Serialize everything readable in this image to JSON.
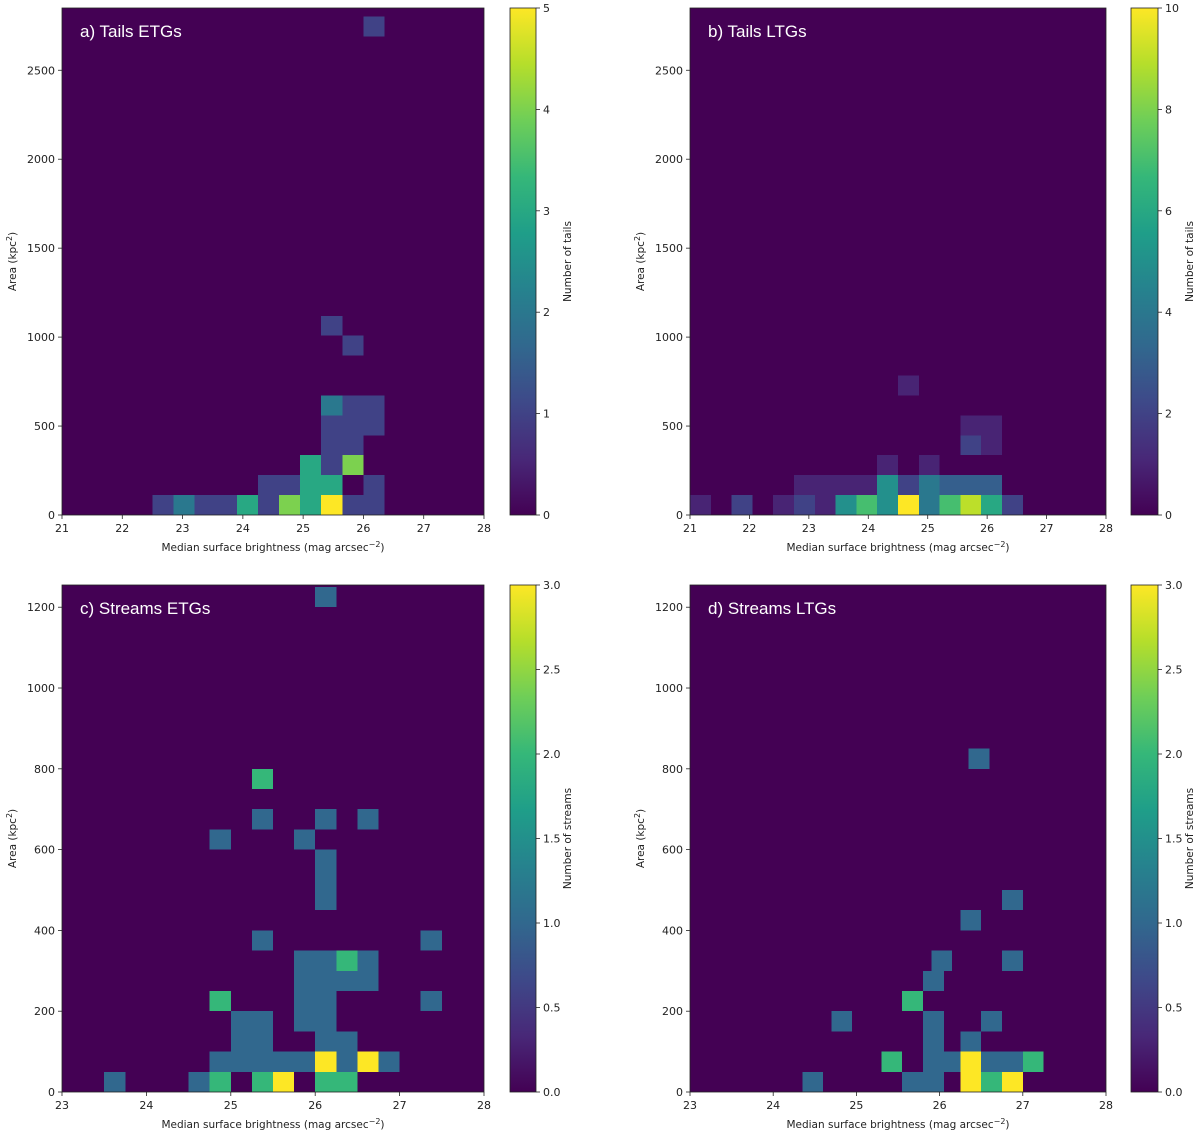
{
  "colors": {
    "background": "#ffffff",
    "axis": "#222222",
    "colormap_viridis": [
      "#440154",
      "#482878",
      "#3e4989",
      "#31688e",
      "#26828e",
      "#1f9e89",
      "#35b779",
      "#6ece58",
      "#b5de2b",
      "#fde725"
    ]
  },
  "chart_data": [
    {
      "id": "a",
      "type": "heatmap",
      "title": "a) Tails ETGs",
      "xlabel": "Median surface brightness (mag arcsec$^{-2}$)",
      "xlabel_text": "Median surface brightness (mag arcsec",
      "xlabel_sup": "−2",
      "xlabel_close": ")",
      "ylabel_text": "Area (kpc",
      "ylabel_sup": "2",
      "ylabel_close": ")",
      "xlim": [
        21,
        28
      ],
      "ylim": [
        0,
        2850
      ],
      "xticks": [
        21,
        22,
        23,
        24,
        25,
        26,
        27,
        28
      ],
      "yticks": [
        0,
        500,
        1000,
        1500,
        2000,
        2500
      ],
      "bin_width": 0.35,
      "bin_height": 112,
      "cells": [
        {
          "x": 22.5,
          "y": 0,
          "v": 1
        },
        {
          "x": 22.85,
          "y": 0,
          "v": 2
        },
        {
          "x": 23.2,
          "y": 0,
          "v": 1
        },
        {
          "x": 23.55,
          "y": 0,
          "v": 1
        },
        {
          "x": 23.9,
          "y": 0,
          "v": 3
        },
        {
          "x": 24.25,
          "y": 0,
          "v": 1
        },
        {
          "x": 24.6,
          "y": 0,
          "v": 4
        },
        {
          "x": 24.95,
          "y": 0,
          "v": 3
        },
        {
          "x": 25.3,
          "y": 0,
          "v": 5
        },
        {
          "x": 25.65,
          "y": 0,
          "v": 1
        },
        {
          "x": 26.0,
          "y": 0,
          "v": 1
        },
        {
          "x": 24.25,
          "y": 112,
          "v": 1
        },
        {
          "x": 24.6,
          "y": 112,
          "v": 1
        },
        {
          "x": 24.95,
          "y": 112,
          "v": 3
        },
        {
          "x": 25.3,
          "y": 112,
          "v": 3
        },
        {
          "x": 26.0,
          "y": 112,
          "v": 1
        },
        {
          "x": 24.95,
          "y": 224,
          "v": 3
        },
        {
          "x": 25.3,
          "y": 224,
          "v": 1
        },
        {
          "x": 25.65,
          "y": 224,
          "v": 4
        },
        {
          "x": 25.3,
          "y": 336,
          "v": 1
        },
        {
          "x": 25.65,
          "y": 336,
          "v": 1
        },
        {
          "x": 25.3,
          "y": 448,
          "v": 1
        },
        {
          "x": 25.65,
          "y": 448,
          "v": 1
        },
        {
          "x": 26.0,
          "y": 448,
          "v": 1
        },
        {
          "x": 25.3,
          "y": 560,
          "v": 2
        },
        {
          "x": 25.65,
          "y": 560,
          "v": 1
        },
        {
          "x": 26.0,
          "y": 560,
          "v": 1
        },
        {
          "x": 25.65,
          "y": 896,
          "v": 1
        },
        {
          "x": 25.3,
          "y": 1008,
          "v": 1
        },
        {
          "x": 26.0,
          "y": 2690,
          "v": 1
        }
      ],
      "colorbar": {
        "label": "Number of tails",
        "range": [
          0,
          5
        ],
        "ticks": [
          "0",
          "1",
          "2",
          "3",
          "4",
          "5"
        ]
      }
    },
    {
      "id": "b",
      "type": "heatmap",
      "title": "b) Tails LTGs",
      "xlabel": "Median surface brightness (mag arcsec$^{-2}$)",
      "xlabel_text": "Median surface brightness (mag arcsec",
      "xlabel_sup": "−2",
      "xlabel_close": ")",
      "ylabel_text": "Area (kpc",
      "ylabel_sup": "2",
      "ylabel_close": ")",
      "xlim": [
        21,
        28
      ],
      "ylim": [
        0,
        2850
      ],
      "xticks": [
        21,
        22,
        23,
        24,
        25,
        26,
        27,
        28
      ],
      "yticks": [
        0,
        500,
        1000,
        1500,
        2000,
        2500
      ],
      "bin_width": 0.35,
      "bin_height": 112,
      "cells": [
        {
          "x": 21.0,
          "y": 0,
          "v": 1
        },
        {
          "x": 21.7,
          "y": 0,
          "v": 2
        },
        {
          "x": 22.4,
          "y": 0,
          "v": 1
        },
        {
          "x": 22.75,
          "y": 0,
          "v": 2
        },
        {
          "x": 23.1,
          "y": 0,
          "v": 1
        },
        {
          "x": 23.45,
          "y": 0,
          "v": 5
        },
        {
          "x": 23.8,
          "y": 0,
          "v": 7
        },
        {
          "x": 24.15,
          "y": 0,
          "v": 5
        },
        {
          "x": 24.5,
          "y": 0,
          "v": 10
        },
        {
          "x": 24.85,
          "y": 0,
          "v": 4
        },
        {
          "x": 25.2,
          "y": 0,
          "v": 7
        },
        {
          "x": 25.55,
          "y": 0,
          "v": 9
        },
        {
          "x": 25.9,
          "y": 0,
          "v": 6
        },
        {
          "x": 26.25,
          "y": 0,
          "v": 2
        },
        {
          "x": 22.75,
          "y": 112,
          "v": 1
        },
        {
          "x": 23.1,
          "y": 112,
          "v": 1
        },
        {
          "x": 23.45,
          "y": 112,
          "v": 1
        },
        {
          "x": 23.8,
          "y": 112,
          "v": 1
        },
        {
          "x": 24.15,
          "y": 112,
          "v": 5
        },
        {
          "x": 24.5,
          "y": 112,
          "v": 2
        },
        {
          "x": 24.85,
          "y": 112,
          "v": 4
        },
        {
          "x": 25.2,
          "y": 112,
          "v": 3
        },
        {
          "x": 25.55,
          "y": 112,
          "v": 3
        },
        {
          "x": 25.9,
          "y": 112,
          "v": 3
        },
        {
          "x": 24.15,
          "y": 224,
          "v": 1
        },
        {
          "x": 24.85,
          "y": 224,
          "v": 1
        },
        {
          "x": 25.55,
          "y": 336,
          "v": 2
        },
        {
          "x": 25.9,
          "y": 336,
          "v": 1
        },
        {
          "x": 25.55,
          "y": 448,
          "v": 1
        },
        {
          "x": 25.9,
          "y": 448,
          "v": 1
        },
        {
          "x": 24.5,
          "y": 672,
          "v": 1
        }
      ],
      "colorbar": {
        "label": "Number of tails",
        "range": [
          0,
          10
        ],
        "ticks": [
          "0",
          "2",
          "4",
          "6",
          "8",
          "10"
        ]
      }
    },
    {
      "id": "c",
      "type": "heatmap",
      "title": "c) Streams ETGs",
      "xlabel": "Median surface brightness (mag arcsec$^{-2}$)",
      "xlabel_text": "Median surface brightness (mag arcsec",
      "xlabel_sup": "−2",
      "xlabel_close": ")",
      "ylabel_text": "Area (kpc",
      "ylabel_sup": "2",
      "ylabel_close": ")",
      "xlim": [
        23,
        28
      ],
      "ylim": [
        0,
        1255
      ],
      "xticks": [
        23,
        24,
        25,
        26,
        27,
        28
      ],
      "yticks": [
        0,
        200,
        400,
        600,
        800,
        1000,
        1200
      ],
      "bin_width": 0.25,
      "bin_height": 50,
      "cells": [
        {
          "x": 23.5,
          "y": 0,
          "v": 1
        },
        {
          "x": 24.5,
          "y": 0,
          "v": 1
        },
        {
          "x": 24.75,
          "y": 0,
          "v": 2
        },
        {
          "x": 25.25,
          "y": 0,
          "v": 2
        },
        {
          "x": 25.5,
          "y": 0,
          "v": 3
        },
        {
          "x": 26.0,
          "y": 0,
          "v": 2
        },
        {
          "x": 26.25,
          "y": 0,
          "v": 2
        },
        {
          "x": 24.75,
          "y": 50,
          "v": 1
        },
        {
          "x": 25.0,
          "y": 50,
          "v": 1
        },
        {
          "x": 25.25,
          "y": 50,
          "v": 1
        },
        {
          "x": 25.5,
          "y": 50,
          "v": 1
        },
        {
          "x": 25.75,
          "y": 50,
          "v": 1
        },
        {
          "x": 26.0,
          "y": 50,
          "v": 3
        },
        {
          "x": 26.25,
          "y": 50,
          "v": 1
        },
        {
          "x": 26.5,
          "y": 50,
          "v": 3
        },
        {
          "x": 26.75,
          "y": 50,
          "v": 1
        },
        {
          "x": 25.0,
          "y": 100,
          "v": 1
        },
        {
          "x": 25.25,
          "y": 100,
          "v": 1
        },
        {
          "x": 26.0,
          "y": 100,
          "v": 1
        },
        {
          "x": 26.25,
          "y": 100,
          "v": 1
        },
        {
          "x": 25.0,
          "y": 150,
          "v": 1
        },
        {
          "x": 25.25,
          "y": 150,
          "v": 1
        },
        {
          "x": 25.75,
          "y": 150,
          "v": 1
        },
        {
          "x": 26.0,
          "y": 150,
          "v": 1
        },
        {
          "x": 24.75,
          "y": 200,
          "v": 2
        },
        {
          "x": 25.75,
          "y": 200,
          "v": 1
        },
        {
          "x": 26.0,
          "y": 200,
          "v": 1
        },
        {
          "x": 27.25,
          "y": 200,
          "v": 1
        },
        {
          "x": 25.75,
          "y": 250,
          "v": 1
        },
        {
          "x": 26.0,
          "y": 250,
          "v": 1
        },
        {
          "x": 26.25,
          "y": 250,
          "v": 1
        },
        {
          "x": 26.5,
          "y": 250,
          "v": 1
        },
        {
          "x": 25.75,
          "y": 300,
          "v": 1
        },
        {
          "x": 26.0,
          "y": 300,
          "v": 1
        },
        {
          "x": 26.25,
          "y": 300,
          "v": 2
        },
        {
          "x": 26.5,
          "y": 300,
          "v": 1
        },
        {
          "x": 25.25,
          "y": 350,
          "v": 1
        },
        {
          "x": 27.25,
          "y": 350,
          "v": 1
        },
        {
          "x": 26.0,
          "y": 450,
          "v": 1
        },
        {
          "x": 26.0,
          "y": 500,
          "v": 1
        },
        {
          "x": 26.0,
          "y": 550,
          "v": 1
        },
        {
          "x": 24.75,
          "y": 600,
          "v": 1
        },
        {
          "x": 25.75,
          "y": 600,
          "v": 1
        },
        {
          "x": 25.25,
          "y": 650,
          "v": 1
        },
        {
          "x": 26.0,
          "y": 650,
          "v": 1
        },
        {
          "x": 26.5,
          "y": 650,
          "v": 1
        },
        {
          "x": 25.25,
          "y": 750,
          "v": 2
        },
        {
          "x": 26.0,
          "y": 1200,
          "v": 1
        }
      ],
      "colorbar": {
        "label": "Number of streams",
        "range": [
          0,
          3.0
        ],
        "ticks": [
          "0.0",
          "0.5",
          "1.0",
          "1.5",
          "2.0",
          "2.5",
          "3.0"
        ]
      }
    },
    {
      "id": "d",
      "type": "heatmap",
      "title": "d) Streams LTGs",
      "xlabel": "Median surface brightness (mag arcsec$^{-2}$)",
      "xlabel_text": "Median surface brightness (mag arcsec",
      "xlabel_sup": "−2",
      "xlabel_close": ")",
      "ylabel_text": "Area (kpc",
      "ylabel_sup": "2",
      "ylabel_close": ")",
      "xlim": [
        23,
        28
      ],
      "ylim": [
        0,
        1255
      ],
      "xticks": [
        23,
        24,
        25,
        26,
        27,
        28
      ],
      "yticks": [
        0,
        200,
        400,
        600,
        800,
        1000,
        1200
      ],
      "bin_width": 0.25,
      "bin_height": 50,
      "cells": [
        {
          "x": 24.35,
          "y": 0,
          "v": 1
        },
        {
          "x": 25.55,
          "y": 0,
          "v": 1
        },
        {
          "x": 25.8,
          "y": 0,
          "v": 1
        },
        {
          "x": 26.25,
          "y": 0,
          "v": 3
        },
        {
          "x": 26.5,
          "y": 0,
          "v": 2
        },
        {
          "x": 26.75,
          "y": 0,
          "v": 3
        },
        {
          "x": 25.3,
          "y": 50,
          "v": 2
        },
        {
          "x": 25.8,
          "y": 50,
          "v": 1
        },
        {
          "x": 26.0,
          "y": 50,
          "v": 1
        },
        {
          "x": 26.25,
          "y": 50,
          "v": 3
        },
        {
          "x": 26.5,
          "y": 50,
          "v": 1
        },
        {
          "x": 26.75,
          "y": 50,
          "v": 1
        },
        {
          "x": 27.0,
          "y": 50,
          "v": 2
        },
        {
          "x": 25.8,
          "y": 100,
          "v": 1
        },
        {
          "x": 26.25,
          "y": 100,
          "v": 1
        },
        {
          "x": 24.7,
          "y": 150,
          "v": 1
        },
        {
          "x": 25.8,
          "y": 150,
          "v": 1
        },
        {
          "x": 26.5,
          "y": 150,
          "v": 1
        },
        {
          "x": 25.55,
          "y": 200,
          "v": 2
        },
        {
          "x": 25.8,
          "y": 250,
          "v": 1
        },
        {
          "x": 25.9,
          "y": 300,
          "v": 1
        },
        {
          "x": 26.75,
          "y": 300,
          "v": 1
        },
        {
          "x": 26.25,
          "y": 400,
          "v": 1
        },
        {
          "x": 26.75,
          "y": 450,
          "v": 1
        },
        {
          "x": 26.35,
          "y": 800,
          "v": 1
        }
      ],
      "colorbar": {
        "label": "Number of streams",
        "range": [
          0,
          3.0
        ],
        "ticks": [
          "0.0",
          "0.5",
          "1.0",
          "1.5",
          "2.0",
          "2.5",
          "3.0"
        ]
      }
    }
  ]
}
